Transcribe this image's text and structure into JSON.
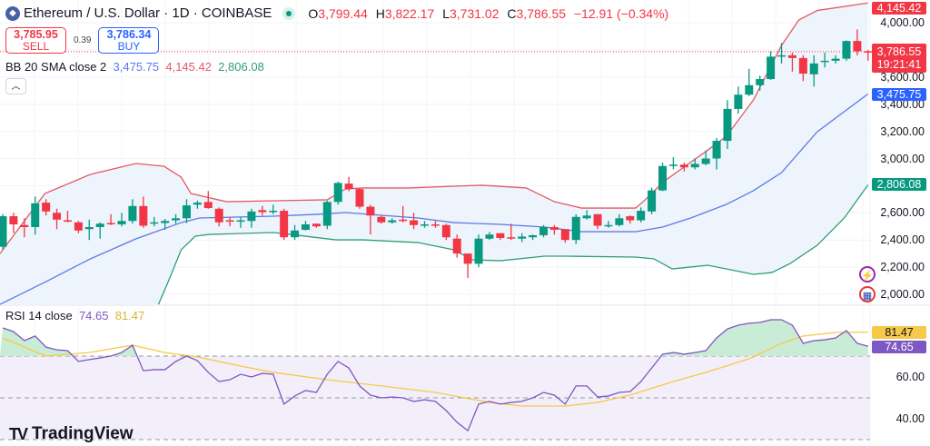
{
  "header": {
    "symbol_icon": "ethereum-icon",
    "title": "Ethereum / U.S. Dollar · 1D · COINBASE",
    "market_status": "market-open-dot",
    "ohlc": [
      {
        "k": "O",
        "v": "3,799.44"
      },
      {
        "k": "H",
        "v": "3,822.17"
      },
      {
        "k": "L",
        "v": "3,731.02"
      },
      {
        "k": "C",
        "v": "3,786.55"
      }
    ],
    "change": "−12.91 (−0.34%)"
  },
  "trade": {
    "sell_price": "3,785.95",
    "sell_label": "SELL",
    "spread": "0.39",
    "buy_price": "3,786.34",
    "buy_label": "BUY"
  },
  "bb_legend": {
    "label": "BB 20 SMA close 2",
    "basis": "3,475.75",
    "upper": "4,145.42",
    "lower": "2,806.08"
  },
  "collapse_icon": "chevron-up-icon",
  "rsi_legend": {
    "label": "RSI 14 close",
    "rsi": "74.65",
    "ma": "81.47"
  },
  "price_axis": [
    "4,000.00",
    "3,600.00",
    "3,400.00",
    "3,200.00",
    "3,000.00",
    "2,600.00",
    "2,400.00",
    "2,200.00",
    "2,000.00"
  ],
  "rsi_axis": [
    "60.00",
    "40.00"
  ],
  "tags": {
    "upper": "4,145.42",
    "last": "3,786.55",
    "countdown": "19:21:41",
    "basis": "3,475.75",
    "lower": "2,806.08",
    "rsi_ma": "81.47",
    "rsi": "74.65"
  },
  "branding": "TradingView",
  "colors": {
    "up": "#089981",
    "down": "#f23645",
    "basis": "#5b79e6",
    "upper": "#e35a64",
    "lower": "#2f9e7d",
    "band_fill": "#eef4fc",
    "rsi": "#7e57c2",
    "rsi_ma": "#f7c948"
  },
  "chart_data": [
    {
      "type": "candlestick",
      "interval": "1D",
      "ylim": [
        2000,
        4145
      ],
      "candles": [
        [
          2350,
          2590,
          2330,
          2575
        ],
        [
          2575,
          2600,
          2450,
          2515
        ],
        [
          2510,
          2560,
          2420,
          2495
        ],
        [
          2495,
          2720,
          2440,
          2670
        ],
        [
          2675,
          2700,
          2580,
          2610
        ],
        [
          2600,
          2630,
          2480,
          2550
        ],
        [
          2545,
          2615,
          2530,
          2540
        ],
        [
          2530,
          2540,
          2450,
          2470
        ],
        [
          2480,
          2550,
          2400,
          2495
        ],
        [
          2495,
          2530,
          2410,
          2520
        ],
        [
          2525,
          2590,
          2510,
          2522
        ],
        [
          2515,
          2600,
          2500,
          2540
        ],
        [
          2540,
          2700,
          2520,
          2650
        ],
        [
          2650,
          2720,
          2490,
          2505
        ],
        [
          2525,
          2570,
          2500,
          2530
        ],
        [
          2525,
          2555,
          2475,
          2540
        ],
        [
          2545,
          2590,
          2520,
          2560
        ],
        [
          2560,
          2700,
          2525,
          2655
        ],
        [
          2660,
          2690,
          2630,
          2675
        ],
        [
          2680,
          2760,
          2630,
          2635
        ],
        [
          2630,
          2640,
          2500,
          2530
        ],
        [
          2545,
          2570,
          2500,
          2540
        ],
        [
          2535,
          2570,
          2490,
          2545
        ],
        [
          2540,
          2630,
          2490,
          2610
        ],
        [
          2620,
          2650,
          2580,
          2605
        ],
        [
          2605,
          2660,
          2590,
          2615
        ],
        [
          2615,
          2630,
          2400,
          2420
        ],
        [
          2420,
          2510,
          2400,
          2470
        ],
        [
          2475,
          2540,
          2470,
          2515
        ],
        [
          2520,
          2520,
          2490,
          2500
        ],
        [
          2505,
          2690,
          2480,
          2680
        ],
        [
          2680,
          2830,
          2660,
          2820
        ],
        [
          2815,
          2865,
          2760,
          2775
        ],
        [
          2775,
          2780,
          2630,
          2645
        ],
        [
          2645,
          2660,
          2440,
          2580
        ],
        [
          2570,
          2580,
          2520,
          2530
        ],
        [
          2530,
          2560,
          2520,
          2545
        ],
        [
          2550,
          2650,
          2530,
          2545
        ],
        [
          2545,
          2600,
          2480,
          2510
        ],
        [
          2505,
          2540,
          2490,
          2515
        ],
        [
          2515,
          2540,
          2490,
          2510
        ],
        [
          2510,
          2520,
          2400,
          2420
        ],
        [
          2410,
          2440,
          2270,
          2300
        ],
        [
          2300,
          2300,
          2120,
          2225
        ],
        [
          2225,
          2440,
          2200,
          2410
        ],
        [
          2410,
          2460,
          2400,
          2440
        ],
        [
          2450,
          2450,
          2400,
          2415
        ],
        [
          2420,
          2520,
          2400,
          2415
        ],
        [
          2410,
          2450,
          2385,
          2425
        ],
        [
          2420,
          2440,
          2400,
          2435
        ],
        [
          2435,
          2510,
          2420,
          2495
        ],
        [
          2495,
          2510,
          2440,
          2475
        ],
        [
          2480,
          2480,
          2380,
          2400
        ],
        [
          2400,
          2590,
          2370,
          2570
        ],
        [
          2560,
          2620,
          2550,
          2580
        ],
        [
          2590,
          2590,
          2480,
          2505
        ],
        [
          2500,
          2540,
          2490,
          2510
        ],
        [
          2510,
          2590,
          2500,
          2560
        ],
        [
          2575,
          2580,
          2520,
          2545
        ],
        [
          2545,
          2640,
          2530,
          2615
        ],
        [
          2610,
          2785,
          2590,
          2765
        ],
        [
          2765,
          2970,
          2760,
          2945
        ],
        [
          2950,
          3010,
          2920,
          2955
        ],
        [
          2955,
          2970,
          2905,
          2935
        ],
        [
          2935,
          3000,
          2920,
          2960
        ],
        [
          2960,
          3060,
          2950,
          3000
        ],
        [
          3000,
          3150,
          2920,
          3130
        ],
        [
          3130,
          3430,
          3070,
          3365
        ],
        [
          3365,
          3530,
          3330,
          3470
        ],
        [
          3470,
          3660,
          3460,
          3540
        ],
        [
          3540,
          3610,
          3500,
          3585
        ],
        [
          3585,
          3790,
          3580,
          3750
        ],
        [
          3755,
          3850,
          3700,
          3760
        ],
        [
          3760,
          3780,
          3640,
          3740
        ],
        [
          3740,
          3760,
          3570,
          3625
        ],
        [
          3620,
          3760,
          3530,
          3700
        ],
        [
          3710,
          3780,
          3670,
          3720
        ],
        [
          3720,
          3760,
          3700,
          3735
        ],
        [
          3735,
          3870,
          3720,
          3865
        ],
        [
          3865,
          3950,
          3760,
          3790
        ],
        [
          3790,
          3800,
          3720,
          3786.55
        ]
      ],
      "bb_upper": [
        [
          -0.25,
          2300
        ],
        [
          3.9,
          2742
        ],
        [
          8.1,
          2883
        ],
        [
          12.3,
          2963
        ],
        [
          14.9,
          2943
        ],
        [
          16.5,
          2863
        ],
        [
          17.4,
          2742
        ],
        [
          20.7,
          2682
        ],
        [
          25.8,
          2690
        ],
        [
          30,
          2696
        ],
        [
          31.7,
          2776
        ],
        [
          33.3,
          2783
        ],
        [
          37.5,
          2783
        ],
        [
          41.7,
          2796
        ],
        [
          44.3,
          2803
        ],
        [
          48.4,
          2783
        ],
        [
          51,
          2682
        ],
        [
          53.5,
          2635
        ],
        [
          58.5,
          2635
        ],
        [
          59.4,
          2696
        ],
        [
          61.1,
          2830
        ],
        [
          65.2,
          3063
        ],
        [
          66.9,
          3164
        ],
        [
          69.4,
          3431
        ],
        [
          72,
          3833
        ],
        [
          73.6,
          4020
        ],
        [
          75.3,
          4090
        ],
        [
          80,
          4145.42
        ]
      ],
      "bb_basis": [
        [
          -0.25,
          1926
        ],
        [
          4,
          2093
        ],
        [
          8.1,
          2261
        ],
        [
          12.3,
          2408
        ],
        [
          16.5,
          2528
        ],
        [
          18.2,
          2562
        ],
        [
          25,
          2575
        ],
        [
          29.1,
          2589
        ],
        [
          31.7,
          2602
        ],
        [
          35,
          2582
        ],
        [
          38.4,
          2562
        ],
        [
          41.7,
          2528
        ],
        [
          46,
          2515
        ],
        [
          50.1,
          2495
        ],
        [
          53.5,
          2461
        ],
        [
          58.5,
          2461
        ],
        [
          61,
          2495
        ],
        [
          63.6,
          2562
        ],
        [
          66.9,
          2662
        ],
        [
          69.4,
          2763
        ],
        [
          72,
          2896
        ],
        [
          75.3,
          3197
        ],
        [
          80,
          3475.75
        ]
      ],
      "bb_lower": [
        [
          14.4,
          1926
        ],
        [
          15.3,
          2093
        ],
        [
          16.5,
          2328
        ],
        [
          17.8,
          2428
        ],
        [
          19.1,
          2441
        ],
        [
          25,
          2455
        ],
        [
          26.6,
          2441
        ],
        [
          30.8,
          2401
        ],
        [
          33.3,
          2401
        ],
        [
          38.4,
          2381
        ],
        [
          41.7,
          2328
        ],
        [
          43.4,
          2254
        ],
        [
          46,
          2247
        ],
        [
          50.1,
          2281
        ],
        [
          51.8,
          2281
        ],
        [
          58.5,
          2274
        ],
        [
          60.2,
          2261
        ],
        [
          61.9,
          2187
        ],
        [
          65.2,
          2214
        ],
        [
          69.4,
          2147
        ],
        [
          71.1,
          2160
        ],
        [
          72.8,
          2227
        ],
        [
          75.3,
          2361
        ],
        [
          77.8,
          2562
        ],
        [
          80,
          2806.08
        ]
      ]
    },
    {
      "type": "line",
      "name": "RSI 14",
      "bands": [
        30,
        50,
        70
      ],
      "rsi": [
        83.5,
        81.7,
        77.4,
        79.6,
        74.3,
        73,
        72.6,
        67.4,
        68.3,
        69.1,
        70,
        71.7,
        75.2,
        63,
        63.5,
        63.5,
        67.4,
        70,
        67.8,
        62.2,
        57.8,
        58.7,
        61.3,
        60,
        61.7,
        61.3,
        47,
        50.9,
        53.5,
        52.6,
        61.3,
        67.4,
        64.3,
        55.7,
        51.3,
        50,
        50.4,
        50,
        48.3,
        49.1,
        48.3,
        43.9,
        38.3,
        34.3,
        47,
        48.3,
        47,
        47.8,
        48.3,
        50,
        52.6,
        51.3,
        47,
        55.7,
        55.7,
        50.4,
        50.9,
        52.6,
        53,
        57.8,
        64.3,
        70.9,
        71.7,
        70.9,
        71.7,
        72.6,
        78.7,
        83,
        84.8,
        85.7,
        86.1,
        87.4,
        87.4,
        84.8,
        76.1,
        77.4,
        77.8,
        78.7,
        82.2,
        76.1,
        74.65
      ],
      "rsi_ma": [
        [
          0,
          78.7
        ],
        [
          4,
          70
        ],
        [
          8,
          71.7
        ],
        [
          12,
          75.2
        ],
        [
          15,
          71.7
        ],
        [
          18,
          69.6
        ],
        [
          22,
          65.2
        ],
        [
          25,
          62.2
        ],
        [
          30,
          58.7
        ],
        [
          35,
          55.7
        ],
        [
          40,
          52.6
        ],
        [
          45,
          47.8
        ],
        [
          48,
          46.1
        ],
        [
          52,
          46.1
        ],
        [
          55,
          47.8
        ],
        [
          58,
          51.3
        ],
        [
          62,
          57.8
        ],
        [
          65,
          62.2
        ],
        [
          69,
          68.7
        ],
        [
          72,
          76.1
        ],
        [
          74,
          79.6
        ],
        [
          77,
          81.3
        ],
        [
          80,
          81.47
        ]
      ]
    }
  ]
}
